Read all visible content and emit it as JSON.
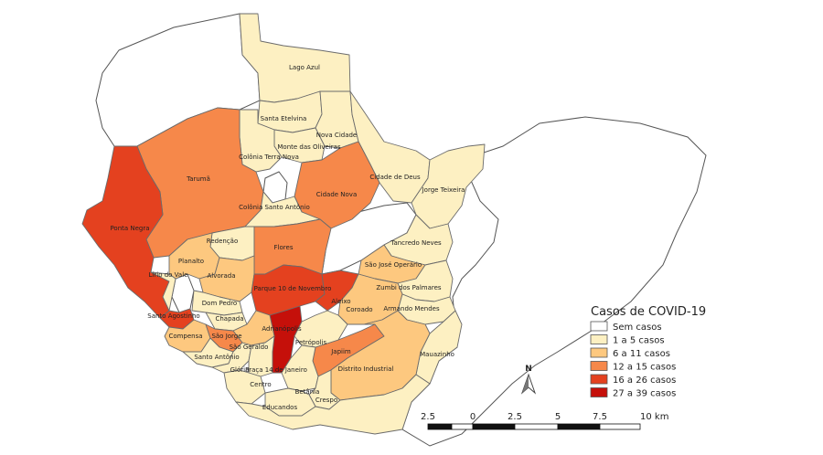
{
  "colors": {
    "none": "#ffffff",
    "c1_5": "#fdf0c2",
    "c6_11": "#fdc87f",
    "c12_15": "#f6884a",
    "c16_26": "#e4411f",
    "c27_39": "#c5100a"
  },
  "neighborhoods": [
    {
      "key": "lago-azul",
      "name": "Lago Azul",
      "class": "c1_5"
    },
    {
      "key": "santa-etelvina",
      "name": "Santa Etelvina",
      "class": "c1_5"
    },
    {
      "key": "nova-cidade",
      "name": "Nova Cidade",
      "class": "c1_5"
    },
    {
      "key": "monte-das-oliveiras",
      "name": "Monte das Oliveiras",
      "class": "c1_5"
    },
    {
      "key": "colonia-terra-nova",
      "name": "Colônia Terra Nova",
      "class": "c1_5"
    },
    {
      "key": "cidade-de-deus",
      "name": "Cidade de Deus",
      "class": "c1_5"
    },
    {
      "key": "jorge-teixeira",
      "name": "Jorge Teixeira",
      "class": "c1_5"
    },
    {
      "key": "taruma",
      "name": "Tarumã",
      "class": "c12_15"
    },
    {
      "key": "ponta-negra",
      "name": "Ponta Negra",
      "class": "c16_26"
    },
    {
      "key": "cidade-nova",
      "name": "Cidade Nova",
      "class": "c12_15"
    },
    {
      "key": "colonia-santo-antonio",
      "name": "Colônia Santo Antônio",
      "class": "c1_5"
    },
    {
      "key": "redencao",
      "name": "Redenção",
      "class": "c1_5"
    },
    {
      "key": "flores",
      "name": "Flores",
      "class": "c12_15"
    },
    {
      "key": "tancredo-neves",
      "name": "Tancredo Neves",
      "class": "c1_5"
    },
    {
      "key": "planalto",
      "name": "Planalto",
      "class": "c6_11"
    },
    {
      "key": "sao-jose-operario",
      "name": "São José Operário",
      "class": "c6_11"
    },
    {
      "key": "lirio-do-vale",
      "name": "Lírio do Vale",
      "class": "c1_5"
    },
    {
      "key": "alvorada",
      "name": "Alvorada",
      "class": "c6_11"
    },
    {
      "key": "parque-10",
      "name": "Parque 10 de Novembro",
      "class": "c16_26"
    },
    {
      "key": "zumbi",
      "name": "Zumbi dos Palmares",
      "class": "c1_5"
    },
    {
      "key": "aleixo",
      "name": "Aleixo",
      "class": "c16_26"
    },
    {
      "key": "dom-pedro",
      "name": "Dom Pedro",
      "class": "c1_5"
    },
    {
      "key": "coroado",
      "name": "Coroado",
      "class": "c6_11"
    },
    {
      "key": "armando-mendes",
      "name": "Armando Mendes",
      "class": "c1_5"
    },
    {
      "key": "santo-agostinho",
      "name": "Santo Agostinho",
      "class": "c16_26"
    },
    {
      "key": "chapada",
      "name": "Chapada",
      "class": "c1_5"
    },
    {
      "key": "adrianopolis",
      "name": "Adrianópolis",
      "class": "c27_39"
    },
    {
      "key": "compensa",
      "name": "Compensa",
      "class": "c6_11"
    },
    {
      "key": "sao-jorge",
      "name": "São Jorge",
      "class": "c12_15"
    },
    {
      "key": "sao-geraldo",
      "name": "São Geraldo",
      "class": "c6_11"
    },
    {
      "key": "japiim",
      "name": "Japiim",
      "class": "c12_15"
    },
    {
      "key": "petropolis",
      "name": "Petrópolis",
      "class": "c1_5"
    },
    {
      "key": "maua",
      "name": "Mauazinho",
      "class": "c1_5"
    },
    {
      "key": "santo-antonio",
      "name": "Santo Antônio",
      "class": "c1_5"
    },
    {
      "key": "distrito-industrial",
      "name": "Distrito Industrial",
      "class": "c6_11"
    },
    {
      "key": "gloria",
      "name": "Glória",
      "class": "c1_5"
    },
    {
      "key": "praca-14",
      "name": "Praça 14 de Janeiro",
      "class": "c1_5"
    },
    {
      "key": "centro",
      "name": "Centro",
      "class": "c1_5"
    },
    {
      "key": "betania",
      "name": "Betânia",
      "class": "c1_5"
    },
    {
      "key": "crespo",
      "name": "Crespo",
      "class": "c1_5"
    },
    {
      "key": "educandos",
      "name": "Educandos",
      "class": "c1_5"
    }
  ],
  "legend": {
    "title": "Casos de COVID-19",
    "items": [
      {
        "label": "Sem casos",
        "class": "none"
      },
      {
        "label": "1 a 5 casos",
        "class": "c1_5"
      },
      {
        "label": "6 a 11 casos",
        "class": "c6_11"
      },
      {
        "label": "12 a 15 casos",
        "class": "c12_15"
      },
      {
        "label": "16 a 26 casos",
        "class": "c16_26"
      },
      {
        "label": "27 a 39 casos",
        "class": "c27_39"
      }
    ]
  },
  "north_arrow": {
    "label": "N"
  },
  "scale_bar": {
    "ticks": [
      "2.5",
      "0",
      "2.5",
      "5",
      "7.5",
      "10 km"
    ]
  }
}
